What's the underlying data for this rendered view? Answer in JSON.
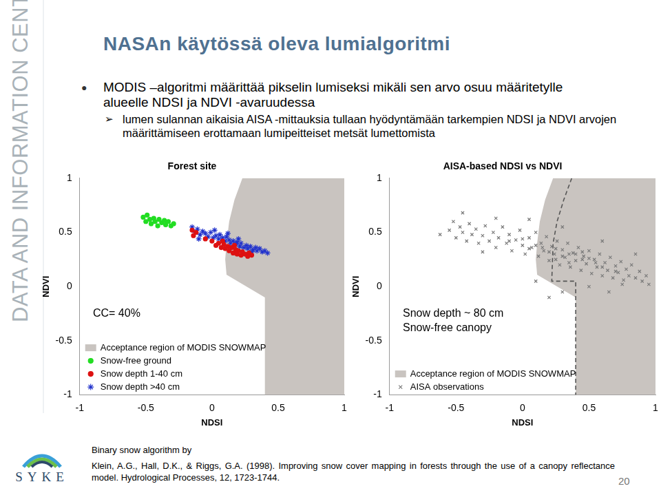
{
  "slide": {
    "sidebar": "DATA AND INFORMATION CENTRE",
    "title": "NASAn käytössä oleva lumialgoritmi",
    "bullets": [
      {
        "text": "MODIS –algoritmi määrittää pikselin lumiseksi mikäli sen arvo osuu määritetylle alueelle NDSI ja NDVI -avaruudessa",
        "sub": [
          "lumen sulannan aikaisia AISA -mittauksia tullaan hyödyntämään tarkempien NDSI ja NDVI arvojen määrittämiseen erottamaan lumipeitteiset metsät lumettomista"
        ]
      }
    ],
    "citation": [
      "Binary snow algorithm by",
      "Klein, A.G., Hall, D.K., & Riggs, G.A. (1998). Improving snow cover mapping in forests through the use of a canopy reflectance model. Hydrological Processes, 12, 1723-1744."
    ],
    "logo": "SYKE",
    "page": 20
  },
  "chart_data": [
    {
      "type": "scatter",
      "title": "Forest site",
      "x_label": "NDSI",
      "y_label": "NDVI",
      "xlim": [
        -1,
        1
      ],
      "ylim": [
        -1,
        1
      ],
      "xticks": [
        -1,
        -0.5,
        0,
        0.5,
        1
      ],
      "yticks": [
        -1,
        -0.5,
        0,
        0.5,
        1
      ],
      "grid": false,
      "legend": "lower left",
      "annotations": [
        "CC= 40%"
      ],
      "region": {
        "name": "Acceptance region of MODIS SNOWMAP",
        "color": "#c9c4c0",
        "x": [
          0.23,
          0.17,
          0.13,
          0.11,
          0.1,
          0.11,
          0.4,
          0.4,
          1,
          1,
          0.23
        ],
        "values": [
          1,
          0.8,
          0.6,
          0.4,
          0.25,
          0.11,
          -0.1,
          -1,
          -1,
          1,
          1
        ]
      },
      "series": [
        {
          "name": "Snow-free ground",
          "color": "#22dd22",
          "marker": "circle",
          "x": [
            -0.52,
            -0.5,
            -0.49,
            -0.47,
            -0.46,
            -0.44,
            -0.43,
            -0.41,
            -0.4,
            -0.38,
            -0.36,
            -0.35,
            -0.33,
            -0.31,
            -0.29
          ],
          "values": [
            0.64,
            0.6,
            0.66,
            0.62,
            0.58,
            0.63,
            0.6,
            0.56,
            0.62,
            0.59,
            0.61,
            0.57,
            0.6,
            0.56,
            0.58
          ]
        },
        {
          "name": "Snow depth 1-40 cm",
          "color": "#dd1111",
          "marker": "circle",
          "x": [
            -0.15,
            -0.14,
            -0.12,
            -0.05,
            0,
            0.03,
            0.05,
            0.07,
            0.09,
            0.1,
            0.12,
            0.13,
            0.15,
            0.16,
            0.18,
            0.19,
            0.2,
            0.22,
            0.23,
            0.25,
            0.27,
            0.28,
            0.3,
            0.08,
            0.17
          ],
          "values": [
            0.52,
            0.47,
            0.5,
            0.44,
            0.42,
            0.38,
            0.4,
            0.36,
            0.39,
            0.35,
            0.37,
            0.33,
            0.36,
            0.31,
            0.34,
            0.3,
            0.33,
            0.29,
            0.32,
            0.3,
            0.28,
            0.31,
            0.29,
            0.42,
            0.38
          ]
        },
        {
          "name": "Snow depth >40 cm",
          "color": "#2233cc",
          "marker": "star",
          "x": [
            -0.15,
            -0.13,
            -0.11,
            -0.09,
            -0.07,
            -0.05,
            -0.03,
            -0.01,
            0.01,
            0.03,
            0.05,
            0.06,
            0.08,
            0.1,
            0.11,
            0.13,
            0.14,
            0.16,
            0.18,
            0.19,
            0.21,
            0.22,
            0.24,
            0.26,
            0.27,
            0.29,
            0.31,
            0.33,
            0.34,
            0.36,
            0.38,
            0.4,
            0.42,
            0.02,
            0.12,
            -0.1,
            0.2,
            0.3
          ],
          "values": [
            0.55,
            0.5,
            0.53,
            0.48,
            0.51,
            0.49,
            0.46,
            0.5,
            0.45,
            0.47,
            0.44,
            0.48,
            0.45,
            0.42,
            0.46,
            0.43,
            0.4,
            0.42,
            0.39,
            0.41,
            0.37,
            0.4,
            0.36,
            0.38,
            0.35,
            0.37,
            0.34,
            0.36,
            0.33,
            0.35,
            0.32,
            0.33,
            0.31,
            0.52,
            0.49,
            0.44,
            0.44,
            0.32
          ]
        }
      ]
    },
    {
      "type": "scatter",
      "title": "AISA-based NDSI vs NDVI",
      "x_label": "NDSI",
      "y_label": "NDVI",
      "xlim": [
        -1,
        1
      ],
      "ylim": [
        -1,
        1
      ],
      "xticks": [
        -1,
        -0.5,
        0,
        0.5,
        1
      ],
      "yticks": [
        -1,
        -0.5,
        0,
        0.5,
        1
      ],
      "grid": false,
      "legend": "lower left",
      "annotations": [
        "Snow depth ~ 80 cm",
        "Snow-free canopy"
      ],
      "region": {
        "name": "Acceptance region of MODIS SNOWMAP",
        "color": "#c9c4c0",
        "x": [
          0.23,
          0.17,
          0.13,
          0.11,
          0.1,
          0.11,
          0.4,
          0.4,
          1,
          1,
          0.23
        ],
        "values": [
          1,
          0.8,
          0.6,
          0.4,
          0.25,
          0.11,
          -0.1,
          -1,
          -1,
          1,
          1
        ]
      },
      "boundary": {
        "color": "#555555",
        "line_style": "dashed",
        "x": [
          0.37,
          0.31,
          0.26,
          0.23,
          0.22,
          0.4,
          0.4
        ],
        "values": [
          1,
          0.8,
          0.6,
          0.4,
          0.05,
          0.05,
          -1
        ]
      },
      "series": [
        {
          "name": "AISA observations",
          "color": "#7a7a7a",
          "marker": "x",
          "x": [
            -0.55,
            -0.52,
            -0.5,
            -0.47,
            -0.45,
            -0.42,
            -0.4,
            -0.38,
            -0.35,
            -0.33,
            -0.3,
            -0.28,
            -0.25,
            -0.22,
            -0.2,
            -0.18,
            -0.15,
            -0.12,
            -0.1,
            -0.08,
            -0.05,
            -0.02,
            0,
            0.02,
            0.05,
            0.07,
            0.1,
            0.12,
            0.14,
            0.16,
            0.18,
            0.2,
            0.22,
            0.24,
            0.26,
            0.28,
            0.3,
            0.32,
            0.34,
            0.36,
            0.38,
            0.4,
            0.42,
            0.44,
            0.46,
            0.48,
            0.5,
            0.52,
            0.54,
            0.56,
            0.58,
            0.6,
            0.62,
            0.64,
            0.66,
            0.68,
            0.7,
            0.72,
            0.74,
            0.76,
            0.78,
            0.8,
            0.82,
            0.85,
            0.88,
            0.9,
            0.93,
            -0.62,
            -0.45,
            -0.2,
            0.05,
            0.3,
            0.6,
            0.85,
            0.5,
            0.3,
            0.2,
            0.65,
            0.1,
            -0.3,
            0.95,
            0.15,
            0.25,
            0.35,
            0.45,
            0.55,
            0.1,
            0.2,
            0.3,
            0.4,
            0.5,
            0,
            -0.1,
            0.6,
            0.7,
            0.35,
            0.25,
            0.45,
            0.05,
            0.75
          ],
          "values": [
            0.52,
            0.6,
            0.45,
            0.55,
            0.5,
            0.42,
            0.58,
            0.48,
            0.53,
            0.4,
            0.47,
            0.56,
            0.42,
            0.5,
            0.36,
            0.45,
            0.55,
            0.4,
            0.48,
            0.33,
            0.43,
            0.52,
            0.38,
            0.3,
            0.45,
            0.36,
            0.5,
            0.28,
            0.4,
            0.33,
            0.46,
            0.24,
            0.37,
            0.3,
            0.42,
            0.2,
            0.34,
            0.27,
            0.4,
            0.18,
            0.31,
            0.24,
            0.36,
            0.15,
            0.28,
            0.21,
            0.33,
            0.12,
            0.25,
            0.18,
            0.3,
            0.1,
            0.22,
            0.15,
            0.27,
            0.08,
            0.19,
            0.13,
            0.23,
            0.06,
            0.16,
            0.1,
            0.2,
            0.08,
            0.14,
            0.05,
            0.1,
            0.48,
            0.68,
            0.63,
            0.62,
            0.55,
            0.42,
            0.3,
            0,
            -0.05,
            -0.1,
            -0.05,
            0.05,
            0.32,
            0.02,
            0.36,
            0.35,
            0.3,
            0.25,
            0.22,
            0.38,
            0.32,
            0.28,
            0.3,
            0.26,
            0.44,
            0.42,
            0.18,
            0.14,
            0.22,
            0.25,
            0.32,
            0.35,
            0.02
          ]
        }
      ]
    }
  ]
}
